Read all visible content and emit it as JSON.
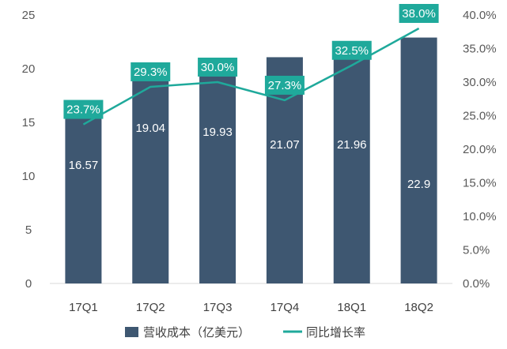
{
  "chart_data": {
    "type": "bar+line",
    "categories": [
      "17Q1",
      "17Q2",
      "17Q3",
      "17Q4",
      "18Q1",
      "18Q2"
    ],
    "series": [
      {
        "name": "营收成本（亿美元）",
        "type": "bar",
        "axis": "left",
        "values": [
          16.57,
          19.04,
          19.93,
          21.07,
          21.96,
          22.9
        ],
        "labels": [
          "16.57",
          "19.04",
          "19.93",
          "21.07",
          "21.96",
          "22.9"
        ],
        "color": "#3e5771"
      },
      {
        "name": "同比增长率",
        "type": "line",
        "axis": "right",
        "values": [
          23.7,
          29.3,
          30.0,
          27.3,
          32.5,
          38.0
        ],
        "labels": [
          "23.7%",
          "29.3%",
          "30.0%",
          "27.3%",
          "32.5%",
          "38.0%"
        ],
        "color": "#1fa99b"
      }
    ],
    "left_axis": {
      "range": [
        0,
        25
      ],
      "ticks": [
        "0",
        "5",
        "10",
        "15",
        "20",
        "25"
      ]
    },
    "right_axis": {
      "range": [
        0,
        40
      ],
      "ticks": [
        "0.0%",
        "5.0%",
        "10.0%",
        "15.0%",
        "20.0%",
        "25.0%",
        "30.0%",
        "35.0%",
        "40.0%"
      ]
    },
    "legend_position": "bottom",
    "grid": false
  }
}
